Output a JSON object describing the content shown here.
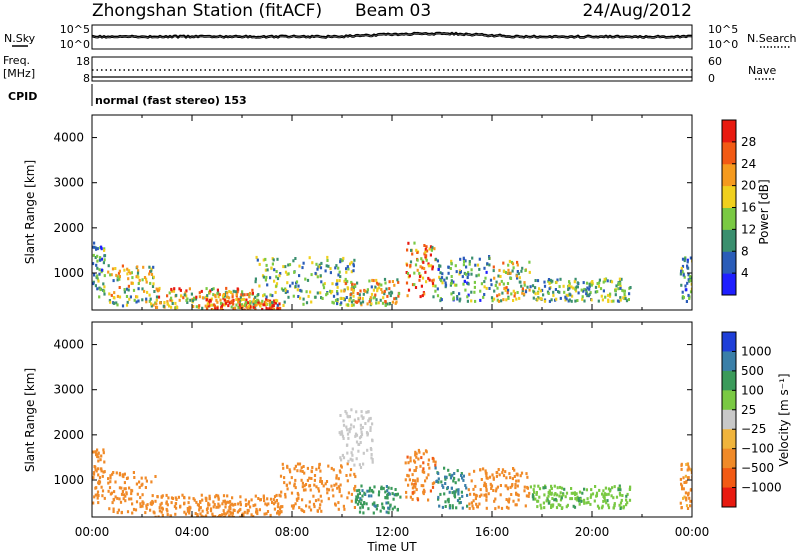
{
  "header": {
    "station": "Zhongshan Station (fitACF)",
    "beam": "Beam 03",
    "date": "24/Aug/2012"
  },
  "side_labels": {
    "nsky": "N.Sky",
    "nsearch": "N.Search",
    "freq": "Freq.",
    "freq_unit": "[MHz]",
    "nave": "Nave",
    "cpid": "CPID"
  },
  "top_panels": {
    "noise_left_ticks": [
      "10^5",
      "10^0"
    ],
    "noise_right_ticks": [
      "10^5",
      "10^0"
    ],
    "freq_left_ticks": [
      "18",
      "8"
    ],
    "freq_right_ticks": [
      "60",
      "0"
    ],
    "cpid_text": "normal (fast stereo) 153"
  },
  "chart_data": [
    {
      "type": "heatmap",
      "name": "power",
      "ylabel": "Slant Range [km]",
      "xlabel": "",
      "ylim": [
        180,
        4500
      ],
      "yticks": [
        1000,
        2000,
        3000,
        4000
      ],
      "xticks": [
        "00:00",
        "04:00",
        "08:00",
        "12:00",
        "16:00",
        "20:00",
        "00:00"
      ],
      "colorbar": {
        "label": "Power [dB]",
        "ticks": [
          "4",
          "8",
          "12",
          "16",
          "20",
          "24",
          "28"
        ],
        "colors": [
          "#1f1fff",
          "#2a5cb8",
          "#3a8f6e",
          "#7ac943",
          "#f0d01e",
          "#f59a1e",
          "#f25a14",
          "#e81a10"
        ]
      },
      "echo_regions": [
        {
          "t0": 0.0,
          "t1": 0.5,
          "r0": 500,
          "r1": 1700,
          "value": 10
        },
        {
          "t0": 0.6,
          "t1": 2.5,
          "r0": 300,
          "r1": 1200,
          "value": 16
        },
        {
          "t0": 2.5,
          "t1": 6.5,
          "r0": 250,
          "r1": 700,
          "value": 20
        },
        {
          "t0": 4.5,
          "t1": 7.5,
          "r0": 200,
          "r1": 450,
          "value": 26
        },
        {
          "t0": 6.5,
          "t1": 10.5,
          "r0": 300,
          "r1": 1400,
          "value": 12
        },
        {
          "t0": 10.0,
          "t1": 12.3,
          "r0": 300,
          "r1": 900,
          "value": 18
        },
        {
          "t0": 12.5,
          "t1": 13.7,
          "r0": 500,
          "r1": 1700,
          "value": 22
        },
        {
          "t0": 13.7,
          "t1": 16.0,
          "r0": 400,
          "r1": 1400,
          "value": 10
        },
        {
          "t0": 16.0,
          "t1": 17.5,
          "r0": 400,
          "r1": 1300,
          "value": 16
        },
        {
          "t0": 17.5,
          "t1": 21.5,
          "r0": 400,
          "r1": 900,
          "value": 12
        },
        {
          "t0": 23.5,
          "t1": 24.0,
          "r0": 400,
          "r1": 1400,
          "value": 10
        }
      ]
    },
    {
      "type": "heatmap",
      "name": "velocity",
      "ylabel": "Slant Range [km]",
      "xlabel": "Time UT",
      "ylim": [
        180,
        4500
      ],
      "yticks": [
        1000,
        2000,
        3000,
        4000
      ],
      "xticks": [
        "00:00",
        "04:00",
        "08:00",
        "12:00",
        "16:00",
        "20:00",
        "00:00"
      ],
      "colorbar": {
        "label": "Velocity [m s⁻¹]",
        "ticks": [
          "1000",
          "500",
          "100",
          "25",
          "−25",
          "−100",
          "−500",
          "−1000"
        ],
        "colors": [
          "#1f3fd8",
          "#3a7fa8",
          "#3a9a5a",
          "#7ac943",
          "#c8c8c8",
          "#f0b43c",
          "#f08a28",
          "#f25a14",
          "#e81a10"
        ]
      },
      "echo_regions": [
        {
          "t0": 0.0,
          "t1": 0.5,
          "r0": 500,
          "r1": 1700,
          "value": -200
        },
        {
          "t0": 0.6,
          "t1": 2.5,
          "r0": 300,
          "r1": 1200,
          "value": -300
        },
        {
          "t0": 2.5,
          "t1": 7.5,
          "r0": 200,
          "r1": 700,
          "value": -250
        },
        {
          "t0": 7.5,
          "t1": 10.5,
          "r0": 300,
          "r1": 1400,
          "value": -200
        },
        {
          "t0": 9.8,
          "t1": 11.2,
          "r0": 1300,
          "r1": 2600,
          "value": 0
        },
        {
          "t0": 10.5,
          "t1": 12.3,
          "r0": 300,
          "r1": 900,
          "value": 400
        },
        {
          "t0": 12.5,
          "t1": 13.7,
          "r0": 500,
          "r1": 1700,
          "value": -400
        },
        {
          "t0": 13.7,
          "t1": 15.0,
          "r0": 400,
          "r1": 1300,
          "value": 500
        },
        {
          "t0": 15.0,
          "t1": 17.5,
          "r0": 400,
          "r1": 1300,
          "value": -200
        },
        {
          "t0": 17.5,
          "t1": 21.5,
          "r0": 400,
          "r1": 900,
          "value": 80
        },
        {
          "t0": 23.5,
          "t1": 24.0,
          "r0": 400,
          "r1": 1400,
          "value": -150
        }
      ]
    }
  ]
}
